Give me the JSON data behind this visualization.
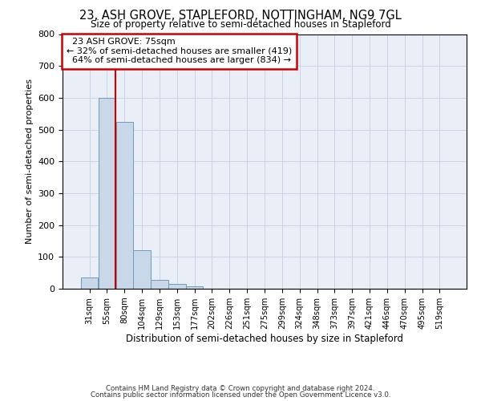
{
  "title": "23, ASH GROVE, STAPLEFORD, NOTTINGHAM, NG9 7GL",
  "subtitle": "Size of property relative to semi-detached houses in Stapleford",
  "xlabel": "Distribution of semi-detached houses by size in Stapleford",
  "ylabel": "Number of semi-detached properties",
  "categories": [
    "31sqm",
    "55sqm",
    "80sqm",
    "104sqm",
    "129sqm",
    "153sqm",
    "177sqm",
    "202sqm",
    "226sqm",
    "251sqm",
    "275sqm",
    "299sqm",
    "324sqm",
    "348sqm",
    "373sqm",
    "397sqm",
    "421sqm",
    "446sqm",
    "470sqm",
    "495sqm",
    "519sqm"
  ],
  "values": [
    35,
    600,
    525,
    120,
    27,
    15,
    7,
    0,
    0,
    0,
    0,
    0,
    0,
    0,
    0,
    0,
    0,
    0,
    0,
    0,
    0
  ],
  "bar_color": "#c8d8e8",
  "bar_edge_color": "#7099bb",
  "ylim": [
    0,
    800
  ],
  "property_label": "23 ASH GROVE: 75sqm",
  "pct_smaller": 32,
  "count_smaller": 419,
  "pct_larger": 64,
  "count_larger": 834,
  "vline_color": "#cc0000",
  "annotation_box_edge": "#cc0000",
  "grid_color": "#c8d4e8",
  "bg_color": "#eaeff7",
  "footer_line1": "Contains HM Land Registry data © Crown copyright and database right 2024.",
  "footer_line2": "Contains public sector information licensed under the Open Government Licence v3.0."
}
